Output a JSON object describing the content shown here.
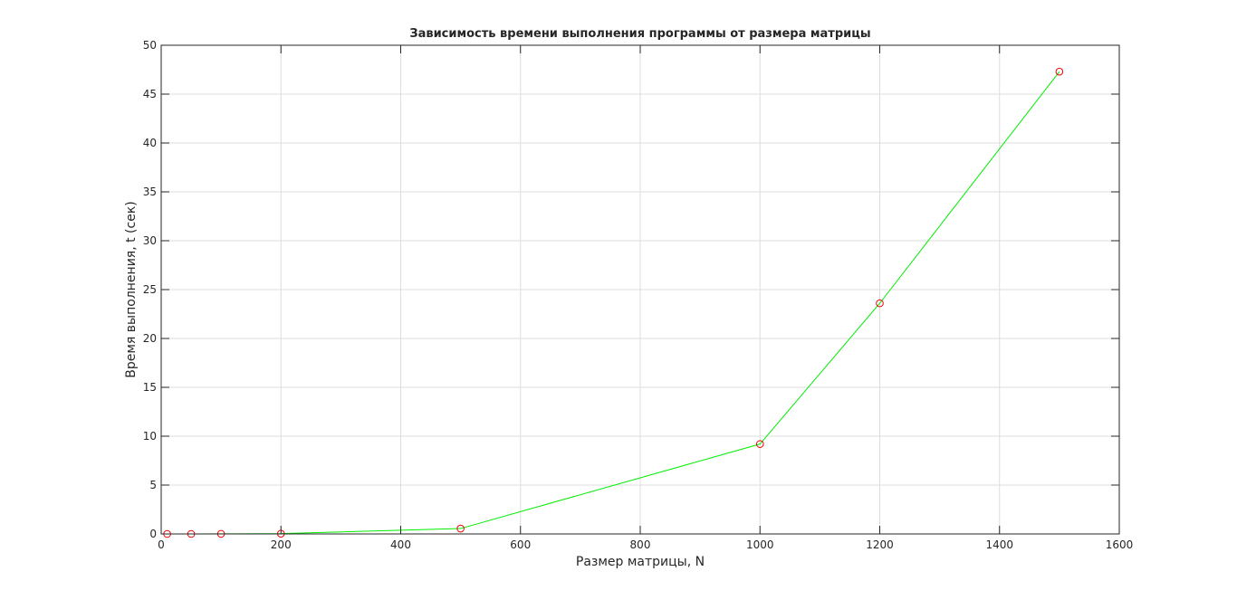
{
  "chart_data": {
    "type": "line",
    "title": "Зависимость времени выполнения программы от размера матрицы",
    "xlabel": "Размер матрицы, N",
    "ylabel": "Время выполнения, t (сек)",
    "xlim": [
      0,
      1600
    ],
    "ylim": [
      0,
      50
    ],
    "xticks": [
      0,
      200,
      400,
      600,
      800,
      1000,
      1200,
      1400,
      1600
    ],
    "yticks": [
      0,
      5,
      10,
      15,
      20,
      25,
      30,
      35,
      40,
      45,
      50
    ],
    "grid": true,
    "series": [
      {
        "x": [
          10,
          50,
          100,
          200,
          500,
          1000,
          1200,
          1500
        ],
        "y": [
          0.0,
          0.0,
          0.01,
          0.03,
          0.55,
          9.2,
          23.6,
          47.3
        ],
        "line_color": "#00ee00",
        "marker": "circle",
        "marker_color": "#ee0000"
      }
    ]
  }
}
